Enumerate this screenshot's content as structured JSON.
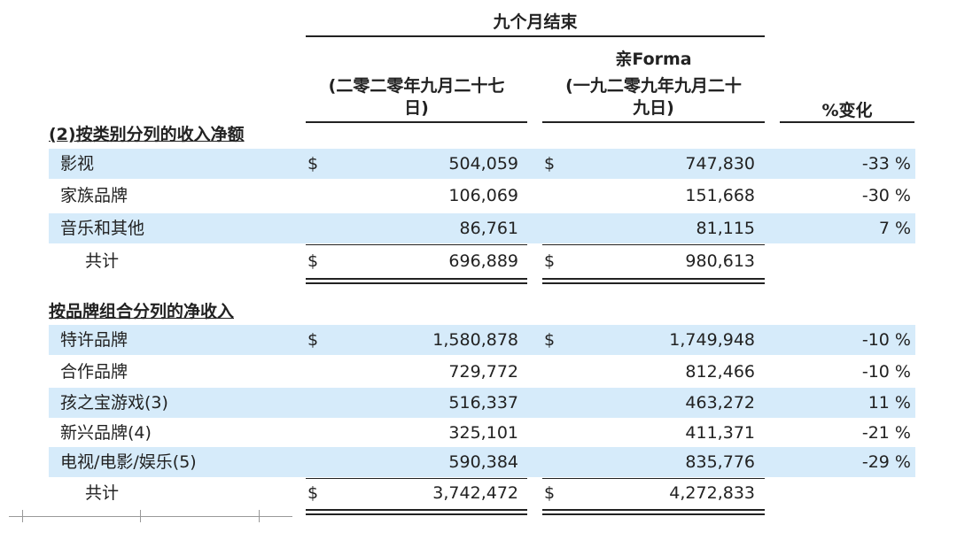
{
  "header": {
    "group_title": "九个月结束",
    "col1": [
      "(二零二零年九月二十七",
      "日)"
    ],
    "col2": [
      "亲Forma",
      "(一九二零九年九月二十",
      "九日)"
    ],
    "col3": "%变化"
  },
  "currency": "$",
  "section1": {
    "title": "(2)按类别分列的收入净额",
    "rows": [
      {
        "label": "影视",
        "v1": "504,059",
        "v2": "747,830",
        "chg": "-33 %",
        "dollar": true,
        "band": true
      },
      {
        "label": "家族品牌",
        "v1": "106,069",
        "v2": "151,668",
        "chg": "-30 %",
        "dollar": false,
        "band": false
      },
      {
        "label": "音乐和其他",
        "v1": "86,761",
        "v2": "81,115",
        "chg": "7 %",
        "dollar": false,
        "band": true
      }
    ],
    "total": {
      "label": "共计",
      "v1": "696,889",
      "v2": "980,613"
    }
  },
  "section2": {
    "title": "按品牌组合分列的净收入",
    "rows": [
      {
        "label": "特许品牌",
        "v1": "1,580,878",
        "v2": "1,749,948",
        "chg": "-10 %",
        "dollar": true,
        "band": true
      },
      {
        "label": "合作品牌",
        "v1": "729,772",
        "v2": "812,466",
        "chg": "-10 %",
        "dollar": false,
        "band": false
      },
      {
        "label": "孩之宝游戏(3)",
        "v1": "516,337",
        "v2": "463,272",
        "chg": "11 %",
        "dollar": false,
        "band": true
      },
      {
        "label": "新兴品牌(4)",
        "v1": "325,101",
        "v2": "411,371",
        "chg": "-21 %",
        "dollar": false,
        "band": false
      },
      {
        "label": "电视/电影/娱乐(5)",
        "v1": "590,384",
        "v2": "835,776",
        "chg": "-29 %",
        "dollar": false,
        "band": true
      }
    ],
    "total": {
      "label": "共计",
      "v1": "3,742,472",
      "v2": "4,272,833"
    }
  }
}
